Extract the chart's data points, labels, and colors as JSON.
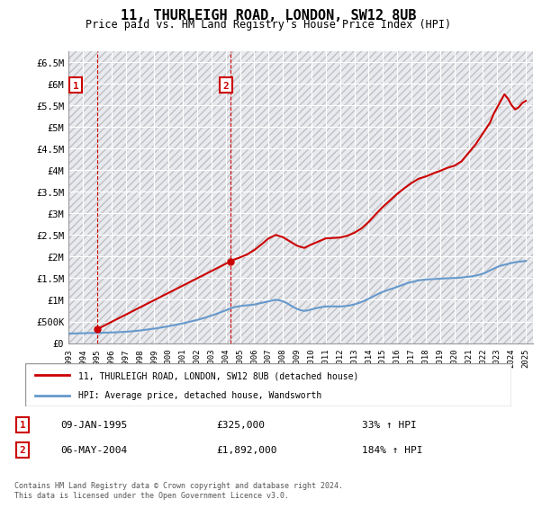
{
  "title": "11, THURLEIGH ROAD, LONDON, SW12 8UB",
  "subtitle": "Price paid vs. HM Land Registry's House Price Index (HPI)",
  "xlim": [
    1993.0,
    2025.5
  ],
  "ylim": [
    0,
    6750000
  ],
  "yticks": [
    0,
    500000,
    1000000,
    1500000,
    2000000,
    2500000,
    3000000,
    3500000,
    4000000,
    4500000,
    5000000,
    5500000,
    6000000,
    6500000
  ],
  "ylabel_map": [
    "£0",
    "£500K",
    "£1M",
    "£1.5M",
    "£2M",
    "£2.5M",
    "£3M",
    "£3.5M",
    "£4M",
    "£4.5M",
    "£5M",
    "£5.5M",
    "£6M",
    "£6.5M"
  ],
  "xticks": [
    1993,
    1994,
    1995,
    1996,
    1997,
    1998,
    1999,
    2000,
    2001,
    2002,
    2003,
    2004,
    2005,
    2006,
    2007,
    2008,
    2009,
    2010,
    2011,
    2012,
    2013,
    2014,
    2015,
    2016,
    2017,
    2018,
    2019,
    2020,
    2021,
    2022,
    2023,
    2024,
    2025
  ],
  "hpi_line_color": "#6699cc",
  "price_line_color": "#cc0000",
  "marker_color": "#cc0000",
  "bg_hatch_color": "#ddddee",
  "point1_x": 1995.03,
  "point1_y": 325000,
  "point2_x": 2004.35,
  "point2_y": 1892000,
  "legend_label1": "11, THURLEIGH ROAD, LONDON, SW12 8UB (detached house)",
  "legend_label2": "HPI: Average price, detached house, Wandsworth",
  "table_row1": [
    "1",
    "09-JAN-1995",
    "£325,000",
    "33% ↑ HPI"
  ],
  "table_row2": [
    "2",
    "06-MAY-2004",
    "£1,892,000",
    "184% ↑ HPI"
  ],
  "footnote": "Contains HM Land Registry data © Crown copyright and database right 2024.\nThis data is licensed under the Open Government Licence v3.0.",
  "hpi_data_x": [
    1993,
    1993.25,
    1993.5,
    1993.75,
    1994,
    1994.25,
    1994.5,
    1994.75,
    1995,
    1995.25,
    1995.5,
    1995.75,
    1996,
    1996.25,
    1996.5,
    1996.75,
    1997,
    1997.25,
    1997.5,
    1997.75,
    1998,
    1998.25,
    1998.5,
    1998.75,
    1999,
    1999.25,
    1999.5,
    1999.75,
    2000,
    2000.25,
    2000.5,
    2000.75,
    2001,
    2001.25,
    2001.5,
    2001.75,
    2002,
    2002.25,
    2002.5,
    2002.75,
    2003,
    2003.25,
    2003.5,
    2003.75,
    2004,
    2004.25,
    2004.5,
    2004.75,
    2005,
    2005.25,
    2005.5,
    2005.75,
    2006,
    2006.25,
    2006.5,
    2006.75,
    2007,
    2007.25,
    2007.5,
    2007.75,
    2008,
    2008.25,
    2008.5,
    2008.75,
    2009,
    2009.25,
    2009.5,
    2009.75,
    2010,
    2010.25,
    2010.5,
    2010.75,
    2011,
    2011.25,
    2011.5,
    2011.75,
    2012,
    2012.25,
    2012.5,
    2012.75,
    2013,
    2013.25,
    2013.5,
    2013.75,
    2014,
    2014.25,
    2014.5,
    2014.75,
    2015,
    2015.25,
    2015.5,
    2015.75,
    2016,
    2016.25,
    2016.5,
    2016.75,
    2017,
    2017.25,
    2017.5,
    2017.75,
    2018,
    2018.25,
    2018.5,
    2018.75,
    2019,
    2019.25,
    2019.5,
    2019.75,
    2020,
    2020.25,
    2020.5,
    2020.75,
    2021,
    2021.25,
    2021.5,
    2021.75,
    2022,
    2022.25,
    2022.5,
    2022.75,
    2023,
    2023.25,
    2023.5,
    2023.75,
    2024,
    2024.25,
    2024.5,
    2024.75,
    2025
  ],
  "hpi_data_y": [
    220000,
    222000,
    224000,
    226000,
    228000,
    230000,
    232000,
    234000,
    236000,
    238000,
    240000,
    242000,
    244000,
    248000,
    252000,
    256000,
    262000,
    268000,
    275000,
    283000,
    292000,
    302000,
    312000,
    322000,
    334000,
    347000,
    361000,
    375000,
    390000,
    406000,
    422000,
    438000,
    456000,
    475000,
    495000,
    515000,
    535000,
    558000,
    582000,
    607000,
    634000,
    663000,
    693000,
    724000,
    757000,
    792000,
    820000,
    840000,
    855000,
    865000,
    875000,
    880000,
    892000,
    910000,
    930000,
    945000,
    965000,
    985000,
    1000000,
    990000,
    965000,
    930000,
    880000,
    830000,
    790000,
    760000,
    745000,
    755000,
    780000,
    800000,
    820000,
    835000,
    845000,
    850000,
    848000,
    845000,
    845000,
    852000,
    862000,
    875000,
    895000,
    920000,
    950000,
    985000,
    1025000,
    1065000,
    1110000,
    1150000,
    1185000,
    1215000,
    1245000,
    1270000,
    1300000,
    1330000,
    1360000,
    1390000,
    1410000,
    1430000,
    1450000,
    1460000,
    1470000,
    1475000,
    1480000,
    1485000,
    1490000,
    1495000,
    1498000,
    1500000,
    1505000,
    1510000,
    1515000,
    1525000,
    1535000,
    1545000,
    1560000,
    1580000,
    1605000,
    1640000,
    1680000,
    1720000,
    1760000,
    1790000,
    1810000,
    1830000,
    1850000,
    1870000,
    1880000,
    1890000,
    1900000
  ],
  "price_data_x": [
    1995.03,
    2004.35,
    2004.5,
    2005.0,
    2005.5,
    2006.0,
    2006.5,
    2007.0,
    2007.5,
    2008.0,
    2008.5,
    2009.0,
    2009.5,
    2010.0,
    2010.5,
    2011.0,
    2011.5,
    2012.0,
    2012.5,
    2013.0,
    2013.5,
    2014.0,
    2014.5,
    2015.0,
    2015.5,
    2016.0,
    2016.5,
    2017.0,
    2017.5,
    2018.0,
    2018.5,
    2019.0,
    2019.5,
    2020.0,
    2020.5,
    2021.0,
    2021.5,
    2022.0,
    2022.5,
    2022.75,
    2023.0,
    2023.25,
    2023.5,
    2023.75,
    2024.0,
    2024.25,
    2024.5,
    2024.75,
    2025.0
  ],
  "price_data_y": [
    325000,
    1892000,
    1920000,
    1980000,
    2050000,
    2150000,
    2280000,
    2420000,
    2500000,
    2450000,
    2350000,
    2250000,
    2200000,
    2280000,
    2350000,
    2420000,
    2430000,
    2440000,
    2480000,
    2550000,
    2650000,
    2800000,
    2980000,
    3150000,
    3300000,
    3450000,
    3580000,
    3700000,
    3800000,
    3850000,
    3920000,
    3980000,
    4050000,
    4100000,
    4200000,
    4400000,
    4600000,
    4850000,
    5100000,
    5300000,
    5450000,
    5600000,
    5750000,
    5650000,
    5500000,
    5400000,
    5450000,
    5550000,
    5600000
  ]
}
